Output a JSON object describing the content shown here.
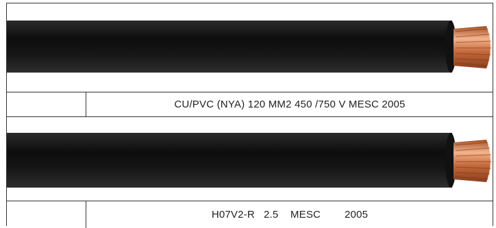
{
  "cables": [
    {
      "marking": "CU/PVC (NYA) 120 MM2 450 /750 V MESC 2005",
      "sheath_color": "#1a1a1a",
      "conductor_color": "#c9744a"
    },
    {
      "marking": "H07V2-R   2.5    MESC        2005",
      "sheath_color": "#1a1a1a",
      "conductor_color": "#c9744a"
    }
  ]
}
